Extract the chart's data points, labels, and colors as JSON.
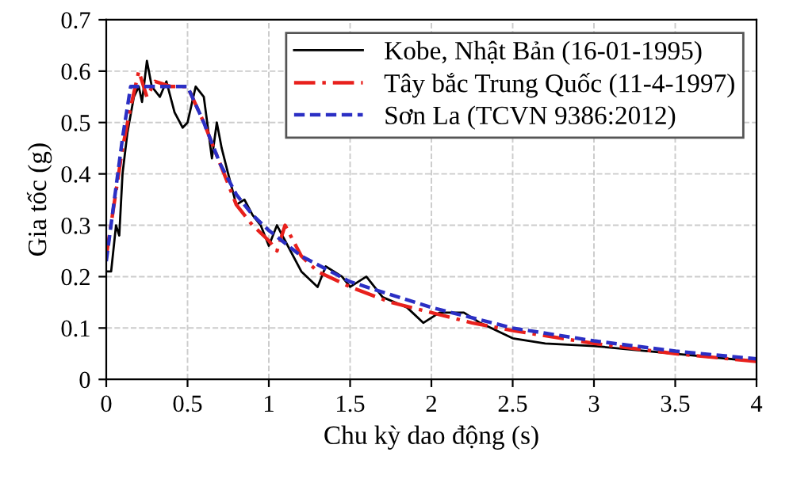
{
  "chart_data": {
    "type": "line",
    "xlabel": "Chu kỳ dao động (s)",
    "ylabel": "Gia tốc (g)",
    "xlim": [
      0,
      4
    ],
    "xticks": [
      0,
      0.5,
      1,
      1.5,
      2,
      2.5,
      3,
      3.5,
      4
    ],
    "ylim": [
      0,
      0.7
    ],
    "yticks": [
      0,
      0.1,
      0.2,
      0.3,
      0.4,
      0.5,
      0.6,
      0.7
    ],
    "grid": true,
    "legend": "top right",
    "series": [
      {
        "name": "Kobe, Nhật Bản (16-01-1995)",
        "color": "#000000",
        "line_style": "solid",
        "x": [
          0,
          0.03,
          0.06,
          0.08,
          0.1,
          0.13,
          0.17,
          0.2,
          0.22,
          0.25,
          0.28,
          0.33,
          0.37,
          0.42,
          0.47,
          0.5,
          0.55,
          0.6,
          0.65,
          0.68,
          0.71,
          0.75,
          0.8,
          0.85,
          0.9,
          0.95,
          1.0,
          1.05,
          1.1,
          1.2,
          1.3,
          1.35,
          1.45,
          1.5,
          1.6,
          1.7,
          1.85,
          1.95,
          2.05,
          2.2,
          2.3,
          2.5,
          2.7,
          3.0,
          3.5,
          4.0
        ],
        "values": [
          0.21,
          0.21,
          0.3,
          0.28,
          0.4,
          0.48,
          0.55,
          0.57,
          0.54,
          0.62,
          0.57,
          0.55,
          0.58,
          0.52,
          0.49,
          0.5,
          0.57,
          0.55,
          0.43,
          0.5,
          0.45,
          0.4,
          0.34,
          0.35,
          0.32,
          0.3,
          0.26,
          0.3,
          0.27,
          0.21,
          0.18,
          0.22,
          0.2,
          0.18,
          0.2,
          0.16,
          0.14,
          0.11,
          0.13,
          0.13,
          0.11,
          0.08,
          0.07,
          0.065,
          0.05,
          0.035
        ]
      },
      {
        "name": "Tây bắc Trung Quốc (11-4-1997)",
        "color": "#e8201c",
        "line_style": "dashdot",
        "x": [
          0,
          0.1,
          0.15,
          0.2,
          0.25,
          0.3,
          0.4,
          0.5,
          0.6,
          0.7,
          0.8,
          0.9,
          1.0,
          1.05,
          1.1,
          1.2,
          1.3,
          1.5,
          1.75,
          2.0,
          2.25,
          2.5,
          3.0,
          3.5,
          4.0
        ],
        "values": [
          0.24,
          0.45,
          0.53,
          0.6,
          0.55,
          0.58,
          0.57,
          0.57,
          0.5,
          0.42,
          0.34,
          0.3,
          0.27,
          0.25,
          0.3,
          0.24,
          0.21,
          0.18,
          0.15,
          0.13,
          0.11,
          0.095,
          0.07,
          0.05,
          0.035
        ]
      },
      {
        "name": "Sơn La (TCVN 9386:2012)",
        "color": "#2b2fc4",
        "line_style": "dashed",
        "x": [
          0,
          0.05,
          0.1,
          0.15,
          0.5,
          0.6,
          0.7,
          0.8,
          0.9,
          1.0,
          1.2,
          1.5,
          2.0,
          2.5,
          3.0,
          3.5,
          4.0
        ],
        "values": [
          0.23,
          0.35,
          0.47,
          0.57,
          0.57,
          0.5,
          0.42,
          0.36,
          0.32,
          0.29,
          0.24,
          0.19,
          0.14,
          0.1,
          0.075,
          0.055,
          0.04
        ]
      }
    ]
  }
}
